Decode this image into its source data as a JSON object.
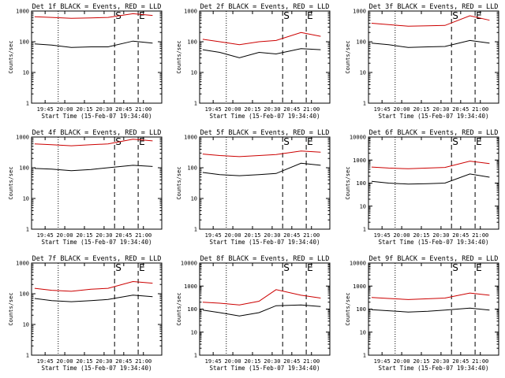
{
  "chart_data": [
    {
      "type": "line",
      "title": "Det 1f BLACK = Events, RED = LLD",
      "xlabel": "Start Time (15-Feb-07 19:34:40)",
      "ylabel": "Counts/sec",
      "ylog": true,
      "yticks": [
        "1",
        "10",
        "100",
        "1000"
      ],
      "ylim": [
        1,
        1000
      ],
      "xticks": [
        "19:45",
        "20:00",
        "20:15",
        "20:30",
        "20:45",
        "21:00"
      ],
      "markers": [
        "S",
        "E"
      ],
      "series": [
        {
          "name": "BLACK",
          "color": "#000000",
          "x": [
            "19:37",
            "19:50",
            "20:05",
            "20:20",
            "20:33",
            "20:52",
            "21:07"
          ],
          "values": [
            85,
            78,
            65,
            68,
            68,
            105,
            90
          ]
        },
        {
          "name": "RED",
          "color": "#cc0000",
          "x": [
            "19:37",
            "19:50",
            "20:05",
            "20:20",
            "20:33",
            "20:52",
            "21:07"
          ],
          "values": [
            650,
            620,
            580,
            600,
            620,
            820,
            720
          ]
        }
      ]
    },
    {
      "type": "line",
      "title": "Det 2f BLACK = Events, RED = LLD",
      "xlabel": "Start Time (15-Feb-07 19:34:40)",
      "ylabel": "Counts/sec",
      "ylog": true,
      "yticks": [
        "1",
        "10",
        "100",
        "1000"
      ],
      "ylim": [
        1,
        1000
      ],
      "xticks": [
        "19:45",
        "20:00",
        "20:15",
        "20:30",
        "20:45",
        "21:00"
      ],
      "markers": [
        "S",
        "E"
      ],
      "series": [
        {
          "name": "BLACK",
          "color": "#000000",
          "x": [
            "19:37",
            "19:50",
            "20:05",
            "20:20",
            "20:33",
            "20:52",
            "21:07"
          ],
          "values": [
            55,
            45,
            30,
            45,
            40,
            60,
            55
          ]
        },
        {
          "name": "RED",
          "color": "#cc0000",
          "x": [
            "19:37",
            "19:50",
            "20:05",
            "20:20",
            "20:33",
            "20:52",
            "21:07"
          ],
          "values": [
            120,
            100,
            80,
            100,
            110,
            200,
            150
          ]
        }
      ]
    },
    {
      "type": "line",
      "title": "Det 3f BLACK = Events, RED = LLD",
      "xlabel": "Start Time (15-Feb-07 19:34:40)",
      "ylabel": "Counts/sec",
      "ylog": true,
      "yticks": [
        "1",
        "10",
        "100",
        "1000"
      ],
      "ylim": [
        1,
        1000
      ],
      "xticks": [
        "19:45",
        "20:00",
        "20:15",
        "20:30",
        "20:45",
        "21:00"
      ],
      "markers": [
        "S",
        "E"
      ],
      "series": [
        {
          "name": "BLACK",
          "color": "#000000",
          "x": [
            "19:37",
            "19:50",
            "20:05",
            "20:20",
            "20:33",
            "20:52",
            "21:07"
          ],
          "values": [
            90,
            80,
            65,
            68,
            70,
            110,
            90
          ]
        },
        {
          "name": "RED",
          "color": "#cc0000",
          "x": [
            "19:37",
            "19:50",
            "20:05",
            "20:20",
            "20:33",
            "20:52",
            "21:07"
          ],
          "values": [
            400,
            360,
            320,
            330,
            340,
            700,
            500
          ]
        }
      ]
    },
    {
      "type": "line",
      "title": "Det 4f BLACK = Events, RED = LLD",
      "xlabel": "Start Time (15-Feb-07 19:34:40)",
      "ylabel": "Counts/sec",
      "ylog": true,
      "yticks": [
        "1",
        "10",
        "100",
        "1000"
      ],
      "ylim": [
        1,
        1000
      ],
      "xticks": [
        "19:45",
        "20:00",
        "20:15",
        "20:30",
        "20:45",
        "21:00"
      ],
      "markers": [
        "S",
        "E"
      ],
      "series": [
        {
          "name": "BLACK",
          "color": "#000000",
          "x": [
            "19:37",
            "19:50",
            "20:05",
            "20:20",
            "20:33",
            "20:52",
            "21:07"
          ],
          "values": [
            95,
            90,
            80,
            88,
            100,
            120,
            110
          ]
        },
        {
          "name": "RED",
          "color": "#cc0000",
          "x": [
            "19:37",
            "19:50",
            "20:05",
            "20:20",
            "20:33",
            "20:52",
            "21:07"
          ],
          "values": [
            600,
            560,
            520,
            560,
            600,
            850,
            750
          ]
        }
      ]
    },
    {
      "type": "line",
      "title": "Det 5f BLACK = Events, RED = LLD",
      "xlabel": "Start Time (15-Feb-07 19:34:40)",
      "ylabel": "Counts/sec",
      "ylog": true,
      "yticks": [
        "1",
        "10",
        "100",
        "1000"
      ],
      "ylim": [
        1,
        1000
      ],
      "xticks": [
        "19:45",
        "20:00",
        "20:15",
        "20:30",
        "20:45",
        "21:00"
      ],
      "markers": [
        "S",
        "E"
      ],
      "series": [
        {
          "name": "BLACK",
          "color": "#000000",
          "x": [
            "19:37",
            "19:50",
            "20:05",
            "20:20",
            "20:33",
            "20:52",
            "21:07"
          ],
          "values": [
            70,
            60,
            55,
            60,
            65,
            140,
            120
          ]
        },
        {
          "name": "RED",
          "color": "#cc0000",
          "x": [
            "19:37",
            "19:50",
            "20:05",
            "20:20",
            "20:33",
            "20:52",
            "21:07"
          ],
          "values": [
            280,
            250,
            230,
            250,
            270,
            350,
            320
          ]
        }
      ]
    },
    {
      "type": "line",
      "title": "Det 6f BLACK = Events, RED = LLD",
      "xlabel": "Start Time (15-Feb-07 19:34:40)",
      "ylabel": "Counts/sec",
      "ylog": true,
      "yticks": [
        "1",
        "10",
        "100",
        "1000",
        "10000"
      ],
      "ylim": [
        1,
        10000
      ],
      "xticks": [
        "19:45",
        "20:00",
        "20:15",
        "20:30",
        "20:45",
        "21:00"
      ],
      "markers": [
        "S",
        "E"
      ],
      "series": [
        {
          "name": "BLACK",
          "color": "#000000",
          "x": [
            "19:37",
            "19:50",
            "20:05",
            "20:20",
            "20:33",
            "20:52",
            "21:07"
          ],
          "values": [
            120,
            100,
            90,
            95,
            100,
            250,
            180
          ]
        },
        {
          "name": "RED",
          "color": "#cc0000",
          "x": [
            "19:37",
            "19:50",
            "20:05",
            "20:20",
            "20:33",
            "20:52",
            "21:07"
          ],
          "values": [
            500,
            450,
            420,
            450,
            480,
            900,
            700
          ]
        }
      ]
    },
    {
      "type": "line",
      "title": "Det 7f BLACK = Events, RED = LLD",
      "xlabel": "Start Time (15-Feb-07 19:34:40)",
      "ylabel": "Counts/sec",
      "ylog": true,
      "yticks": [
        "1",
        "10",
        "100",
        "1000"
      ],
      "ylim": [
        1,
        1000
      ],
      "xticks": [
        "19:45",
        "20:00",
        "20:15",
        "20:30",
        "20:45",
        "21:00"
      ],
      "markers": [
        "S",
        "E"
      ],
      "series": [
        {
          "name": "BLACK",
          "color": "#000000",
          "x": [
            "19:37",
            "19:50",
            "20:05",
            "20:20",
            "20:33",
            "20:52",
            "21:07"
          ],
          "values": [
            70,
            60,
            55,
            60,
            65,
            90,
            80
          ]
        },
        {
          "name": "RED",
          "color": "#cc0000",
          "x": [
            "19:37",
            "19:50",
            "20:05",
            "20:20",
            "20:33",
            "20:52",
            "21:07"
          ],
          "values": [
            150,
            130,
            120,
            140,
            150,
            250,
            220
          ]
        }
      ]
    },
    {
      "type": "line",
      "title": "Det 8f BLACK = Events, RED = LLD",
      "xlabel": "Start Time (15-Feb-07 19:34:40)",
      "ylabel": "Counts/sec",
      "ylog": true,
      "yticks": [
        "1",
        "10",
        "100",
        "1000",
        "10000"
      ],
      "ylim": [
        1,
        10000
      ],
      "xticks": [
        "19:45",
        "20:00",
        "20:15",
        "20:30",
        "20:45",
        "21:00"
      ],
      "markers": [
        "S",
        "E"
      ],
      "series": [
        {
          "name": "BLACK",
          "color": "#000000",
          "x": [
            "19:37",
            "19:50",
            "20:05",
            "20:20",
            "20:33",
            "20:52",
            "21:07"
          ],
          "values": [
            90,
            70,
            50,
            70,
            140,
            150,
            130
          ]
        },
        {
          "name": "RED",
          "color": "#cc0000",
          "x": [
            "19:37",
            "19:50",
            "20:05",
            "20:20",
            "20:33",
            "20:52",
            "21:07"
          ],
          "values": [
            200,
            180,
            150,
            220,
            700,
            400,
            300
          ]
        }
      ]
    },
    {
      "type": "line",
      "title": "Det 9f BLACK = Events, RED = LLD",
      "xlabel": "Start Time (15-Feb-07 19:34:40)",
      "ylabel": "Counts/sec",
      "ylog": true,
      "yticks": [
        "1",
        "10",
        "100",
        "1000",
        "10000"
      ],
      "ylim": [
        1,
        10000
      ],
      "xticks": [
        "19:45",
        "20:00",
        "20:15",
        "20:30",
        "20:45",
        "21:00"
      ],
      "markers": [
        "S",
        "E"
      ],
      "series": [
        {
          "name": "BLACK",
          "color": "#000000",
          "x": [
            "19:37",
            "19:50",
            "20:05",
            "20:20",
            "20:33",
            "20:52",
            "21:07"
          ],
          "values": [
            95,
            85,
            75,
            80,
            90,
            110,
            90
          ]
        },
        {
          "name": "RED",
          "color": "#cc0000",
          "x": [
            "19:37",
            "19:50",
            "20:05",
            "20:20",
            "20:33",
            "20:52",
            "21:07"
          ],
          "values": [
            320,
            290,
            260,
            280,
            300,
            500,
            400
          ]
        }
      ]
    }
  ]
}
